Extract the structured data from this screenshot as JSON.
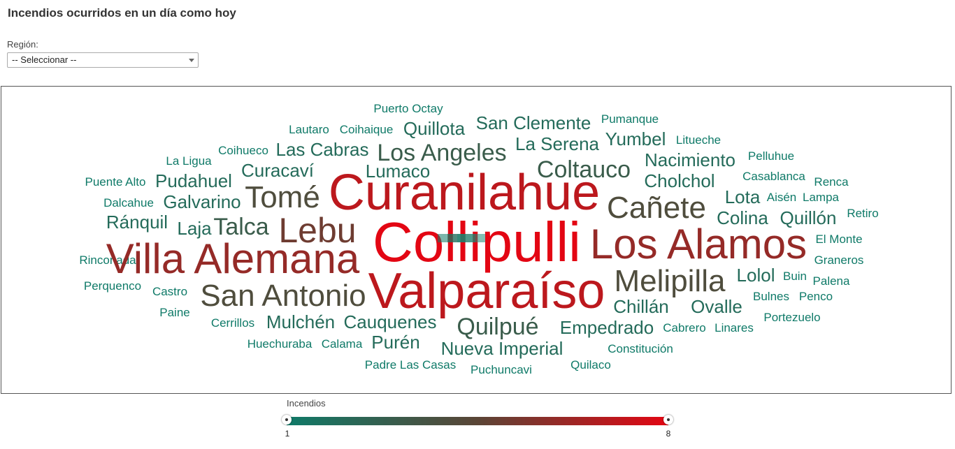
{
  "page": {
    "title": "Incendios ocurridos en un día como hoy"
  },
  "filter": {
    "label": "Región:",
    "selected": "-- Seleccionar --"
  },
  "legend": {
    "title": "Incendios",
    "min_label": "1",
    "max_label": "8",
    "color_low": "#0f7a68",
    "color_high": "#e30613"
  },
  "chart_data": {
    "type": "wordcloud",
    "title": "",
    "value_field": "Incendios",
    "range": [
      1,
      8
    ],
    "words": [
      {
        "text": "Collipulli",
        "value": 8
      },
      {
        "text": "Curanilahue",
        "value": 7
      },
      {
        "text": "Valparaíso",
        "value": 7
      },
      {
        "text": "Villa Alemana",
        "value": 6
      },
      {
        "text": "Los Alamos",
        "value": 6
      },
      {
        "text": "Lebu",
        "value": 5
      },
      {
        "text": "San Antonio",
        "value": 4
      },
      {
        "text": "Tomé",
        "value": 4
      },
      {
        "text": "Cañete",
        "value": 4
      },
      {
        "text": "Melipilla",
        "value": 4
      },
      {
        "text": "Los Angeles",
        "value": 3
      },
      {
        "text": "Coltauco",
        "value": 3
      },
      {
        "text": "Quilpué",
        "value": 3
      },
      {
        "text": "Talca",
        "value": 3
      },
      {
        "text": "Las Cabras",
        "value": 2
      },
      {
        "text": "Quillota",
        "value": 2
      },
      {
        "text": "San Clemente",
        "value": 2
      },
      {
        "text": "La Serena",
        "value": 2
      },
      {
        "text": "Yumbel",
        "value": 2
      },
      {
        "text": "Nacimiento",
        "value": 2
      },
      {
        "text": "Cholchol",
        "value": 2
      },
      {
        "text": "Curacaví",
        "value": 2
      },
      {
        "text": "Lumaco",
        "value": 2
      },
      {
        "text": "Pudahuel",
        "value": 2
      },
      {
        "text": "Galvarino",
        "value": 2
      },
      {
        "text": "Ránquil",
        "value": 2
      },
      {
        "text": "Laja",
        "value": 2
      },
      {
        "text": "Lota",
        "value": 2
      },
      {
        "text": "Colina",
        "value": 2
      },
      {
        "text": "Quillón",
        "value": 2
      },
      {
        "text": "Lolol",
        "value": 2
      },
      {
        "text": "Chillán",
        "value": 2
      },
      {
        "text": "Ovalle",
        "value": 2
      },
      {
        "text": "Mulchén",
        "value": 2
      },
      {
        "text": "Cauquenes",
        "value": 2
      },
      {
        "text": "Empedrado",
        "value": 2
      },
      {
        "text": "Purén",
        "value": 2
      },
      {
        "text": "Nueva Imperial",
        "value": 2
      },
      {
        "text": "Puerto Octay",
        "value": 1
      },
      {
        "text": "Pumanque",
        "value": 1
      },
      {
        "text": "Lautaro",
        "value": 1
      },
      {
        "text": "Coihaique",
        "value": 1
      },
      {
        "text": "Litueche",
        "value": 1
      },
      {
        "text": "La Ligua",
        "value": 1
      },
      {
        "text": "Coihueco",
        "value": 1
      },
      {
        "text": "Pelluhue",
        "value": 1
      },
      {
        "text": "Casablanca",
        "value": 1
      },
      {
        "text": "Renca",
        "value": 1
      },
      {
        "text": "Puente Alto",
        "value": 1
      },
      {
        "text": "Aisén",
        "value": 1
      },
      {
        "text": "Lampa",
        "value": 1
      },
      {
        "text": "Dalcahue",
        "value": 1
      },
      {
        "text": "Retiro",
        "value": 1
      },
      {
        "text": "El Monte",
        "value": 1
      },
      {
        "text": "Rinconada",
        "value": 1
      },
      {
        "text": "Graneros",
        "value": 1
      },
      {
        "text": "Buin",
        "value": 1
      },
      {
        "text": "Perquenco",
        "value": 1
      },
      {
        "text": "Castro",
        "value": 1
      },
      {
        "text": "Palena",
        "value": 1
      },
      {
        "text": "Bulnes",
        "value": 1
      },
      {
        "text": "Penco",
        "value": 1
      },
      {
        "text": "Paine",
        "value": 1
      },
      {
        "text": "Cerrillos",
        "value": 1
      },
      {
        "text": "Portezuelo",
        "value": 1
      },
      {
        "text": "Cabrero",
        "value": 1
      },
      {
        "text": "Linares",
        "value": 1
      },
      {
        "text": "Huechuraba",
        "value": 1
      },
      {
        "text": "Calama",
        "value": 1
      },
      {
        "text": "Constitución",
        "value": 1
      },
      {
        "text": "Padre Las Casas",
        "value": 1
      },
      {
        "text": "Quilaco",
        "value": 1
      },
      {
        "text": "Puchuncavi",
        "value": 1
      }
    ]
  }
}
